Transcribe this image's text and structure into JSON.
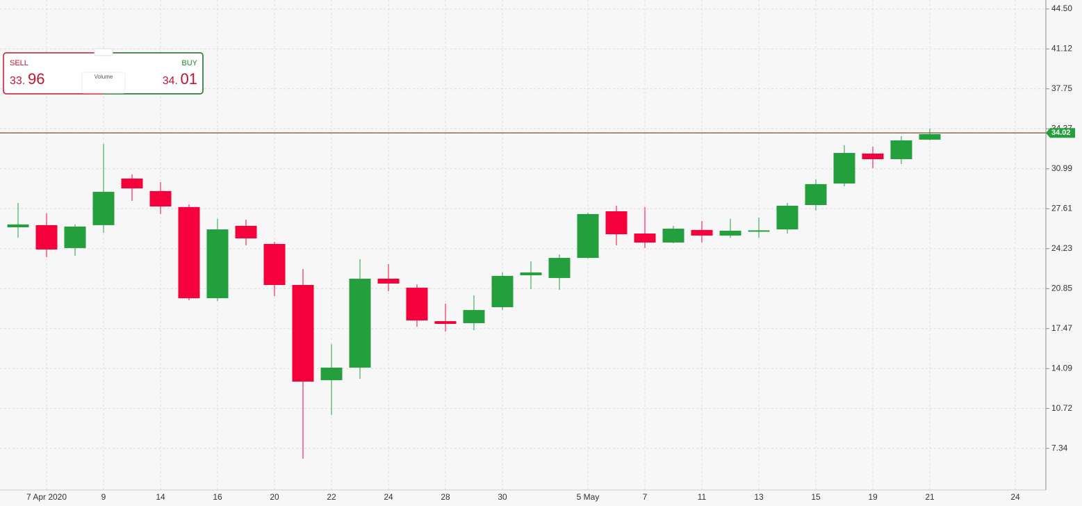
{
  "chart_data": {
    "type": "candlestick",
    "categories": [
      null,
      "7 Apr 2020",
      null,
      "9",
      null,
      "14",
      null,
      "16",
      null,
      "20",
      null,
      "22",
      null,
      "24",
      null,
      "28",
      null,
      "30",
      null,
      null,
      "5 May",
      null,
      "7",
      null,
      "11",
      null,
      "13",
      null,
      "15",
      null,
      "19",
      null,
      "21",
      null,
      null,
      "24"
    ],
    "open": [
      26.04,
      26.22,
      24.28,
      26.22,
      30.16,
      29.1,
      27.75,
      20.04,
      26.16,
      24.63,
      21.16,
      13.11,
      14.17,
      21.69,
      20.93,
      18.1,
      17.93,
      19.28,
      21.98,
      21.75,
      23.45,
      27.39,
      25.51,
      24.75,
      25.81,
      25.34,
      25.7,
      25.86,
      27.92,
      29.74,
      32.27,
      31.8,
      33.45,
      null,
      null,
      null
    ],
    "high": [
      28.1,
      27.22,
      26.28,
      33.09,
      30.51,
      29.86,
      27.98,
      26.75,
      26.69,
      24.81,
      22.51,
      16.16,
      23.34,
      22.92,
      21.22,
      19.57,
      20.28,
      22.22,
      23.16,
      23.75,
      27.28,
      27.86,
      27.75,
      26.16,
      26.57,
      26.75,
      26.86,
      28.1,
      30.1,
      32.98,
      32.86,
      33.74,
      34.39,
      null,
      null,
      null
    ],
    "low": [
      25.16,
      23.51,
      23.63,
      25.57,
      28.27,
      27.16,
      19.87,
      19.81,
      24.51,
      20.22,
      6.46,
      10.17,
      13.22,
      20.63,
      17.63,
      17.22,
      17.34,
      19.04,
      20.81,
      20.75,
      23.4,
      24.51,
      24.28,
      24.69,
      24.75,
      25.16,
      25.16,
      25.51,
      27.45,
      29.51,
      31.04,
      31.39,
      33.39,
      null,
      null,
      null
    ],
    "close": [
      26.28,
      24.16,
      26.1,
      29.04,
      29.33,
      27.8,
      20.04,
      25.86,
      25.1,
      21.16,
      12.99,
      14.17,
      21.69,
      21.28,
      18.16,
      17.87,
      19.04,
      21.93,
      22.22,
      23.45,
      27.16,
      25.45,
      24.75,
      25.92,
      25.34,
      25.75,
      25.78,
      27.86,
      29.69,
      32.33,
      31.8,
      33.39,
      33.92,
      null,
      null,
      null
    ],
    "up_color": "#23a03d",
    "down_color": "#f5003a",
    "ylim": [
      3.82,
      45.26
    ],
    "yticks": [
      {
        "value": 44.5,
        "label": "44.50"
      },
      41.12,
      37.75,
      34.37,
      30.99,
      27.61,
      24.23,
      20.85,
      17.47,
      14.09,
      10.72,
      7.34
    ],
    "grid": true,
    "price_line": {
      "value": 34.02,
      "color": "#8b6b4a",
      "tag_color": "#23a03d"
    },
    "widget": {
      "sell_label": "SELL",
      "sell_price_main": "33.",
      "sell_price_pips": "96",
      "buy_label": "BUY",
      "buy_price_main": "34.",
      "buy_price_pips": "01",
      "volume_label": "Volume"
    }
  }
}
